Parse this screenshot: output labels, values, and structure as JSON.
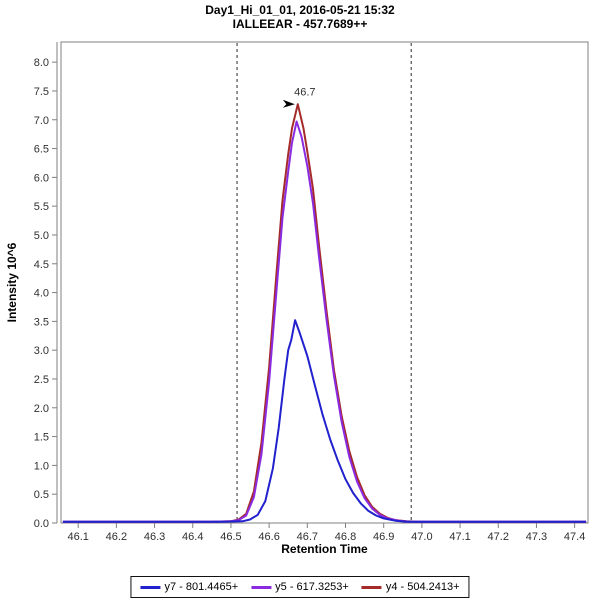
{
  "title": {
    "line1": "Day1_Hi_01_01, 2016-05-21 15:32",
    "line2": "IALLEEAR - 457.7689++"
  },
  "colors": {
    "axis_line": "#808080",
    "tick_label": "#303030",
    "boundary_line": "#2a2a2a",
    "annotation_arrow": "#000000",
    "background": "#ffffff"
  },
  "chart_data": {
    "type": "line",
    "title": "Day1_Hi_01_01, 2016-05-21 15:32 / IALLEEAR - 457.7689++",
    "xlabel": "Retention Time",
    "ylabel": "Intensity 10^6",
    "xlim": [
      46.055,
      47.435
    ],
    "ylim": [
      0,
      8.35
    ],
    "x_ticks": [
      46.1,
      46.2,
      46.3,
      46.4,
      46.5,
      46.6,
      46.7,
      46.8,
      46.9,
      47.0,
      47.1,
      47.2,
      47.3,
      47.4
    ],
    "y_ticks": [
      0.0,
      0.5,
      1.0,
      1.5,
      2.0,
      2.5,
      3.0,
      3.5,
      4.0,
      4.5,
      5.0,
      5.5,
      6.0,
      6.5,
      7.0,
      7.5,
      8.0
    ],
    "grid": false,
    "legend_position": "bottom-center",
    "peak_boundaries": [
      46.516,
      46.972
    ],
    "boundary_style": "dashed",
    "annotation": {
      "label": "46.7",
      "x": 46.67,
      "y": 7.27,
      "color": "#b04545"
    },
    "series": [
      {
        "name": "y7 - 801.4465+",
        "color": "#2121ce",
        "points": [
          [
            46.06,
            0.02
          ],
          [
            46.2,
            0.02
          ],
          [
            46.35,
            0.02
          ],
          [
            46.48,
            0.02
          ],
          [
            46.53,
            0.03
          ],
          [
            46.55,
            0.06
          ],
          [
            46.57,
            0.14
          ],
          [
            46.59,
            0.38
          ],
          [
            46.61,
            0.95
          ],
          [
            46.625,
            1.65
          ],
          [
            46.64,
            2.5
          ],
          [
            46.65,
            3.0
          ],
          [
            46.658,
            3.18
          ],
          [
            46.668,
            3.52
          ],
          [
            46.68,
            3.3
          ],
          [
            46.7,
            2.9
          ],
          [
            46.72,
            2.38
          ],
          [
            46.74,
            1.88
          ],
          [
            46.76,
            1.45
          ],
          [
            46.78,
            1.08
          ],
          [
            46.8,
            0.76
          ],
          [
            46.82,
            0.52
          ],
          [
            46.84,
            0.34
          ],
          [
            46.86,
            0.21
          ],
          [
            46.88,
            0.13
          ],
          [
            46.9,
            0.08
          ],
          [
            46.93,
            0.04
          ],
          [
            46.96,
            0.02
          ],
          [
            47.1,
            0.02
          ],
          [
            47.25,
            0.02
          ],
          [
            47.43,
            0.02
          ]
        ]
      },
      {
        "name": "y5 - 617.3253+",
        "color": "#8a2be2",
        "points": [
          [
            46.06,
            0.02
          ],
          [
            46.2,
            0.02
          ],
          [
            46.35,
            0.02
          ],
          [
            46.45,
            0.02
          ],
          [
            46.5,
            0.03
          ],
          [
            46.52,
            0.05
          ],
          [
            46.54,
            0.13
          ],
          [
            46.56,
            0.45
          ],
          [
            46.58,
            1.2
          ],
          [
            46.6,
            2.45
          ],
          [
            46.62,
            4.1
          ],
          [
            46.635,
            5.3
          ],
          [
            46.65,
            6.1
          ],
          [
            46.66,
            6.6
          ],
          [
            46.672,
            6.97
          ],
          [
            46.685,
            6.7
          ],
          [
            46.7,
            6.2
          ],
          [
            46.715,
            5.55
          ],
          [
            46.73,
            4.65
          ],
          [
            46.75,
            3.55
          ],
          [
            46.77,
            2.55
          ],
          [
            46.79,
            1.75
          ],
          [
            46.81,
            1.15
          ],
          [
            46.83,
            0.72
          ],
          [
            46.85,
            0.43
          ],
          [
            46.87,
            0.25
          ],
          [
            46.89,
            0.14
          ],
          [
            46.91,
            0.08
          ],
          [
            46.94,
            0.04
          ],
          [
            46.97,
            0.02
          ],
          [
            47.1,
            0.02
          ],
          [
            47.25,
            0.02
          ],
          [
            47.43,
            0.02
          ]
        ]
      },
      {
        "name": "y4 - 504.2413+",
        "color": "#a52a2a",
        "points": [
          [
            46.06,
            0.02
          ],
          [
            46.2,
            0.02
          ],
          [
            46.35,
            0.02
          ],
          [
            46.45,
            0.02
          ],
          [
            46.5,
            0.03
          ],
          [
            46.52,
            0.06
          ],
          [
            46.54,
            0.16
          ],
          [
            46.56,
            0.55
          ],
          [
            46.58,
            1.4
          ],
          [
            46.6,
            2.7
          ],
          [
            46.62,
            4.4
          ],
          [
            46.635,
            5.6
          ],
          [
            46.65,
            6.4
          ],
          [
            46.66,
            6.85
          ],
          [
            46.675,
            7.27
          ],
          [
            46.69,
            6.85
          ],
          [
            46.7,
            6.45
          ],
          [
            46.715,
            5.8
          ],
          [
            46.73,
            4.85
          ],
          [
            46.75,
            3.7
          ],
          [
            46.77,
            2.65
          ],
          [
            46.79,
            1.85
          ],
          [
            46.81,
            1.25
          ],
          [
            46.83,
            0.8
          ],
          [
            46.85,
            0.48
          ],
          [
            46.87,
            0.28
          ],
          [
            46.89,
            0.16
          ],
          [
            46.91,
            0.09
          ],
          [
            46.93,
            0.05
          ],
          [
            46.96,
            0.03
          ],
          [
            46.99,
            0.02
          ],
          [
            47.1,
            0.02
          ],
          [
            47.25,
            0.02
          ],
          [
            47.43,
            0.02
          ]
        ]
      }
    ]
  }
}
